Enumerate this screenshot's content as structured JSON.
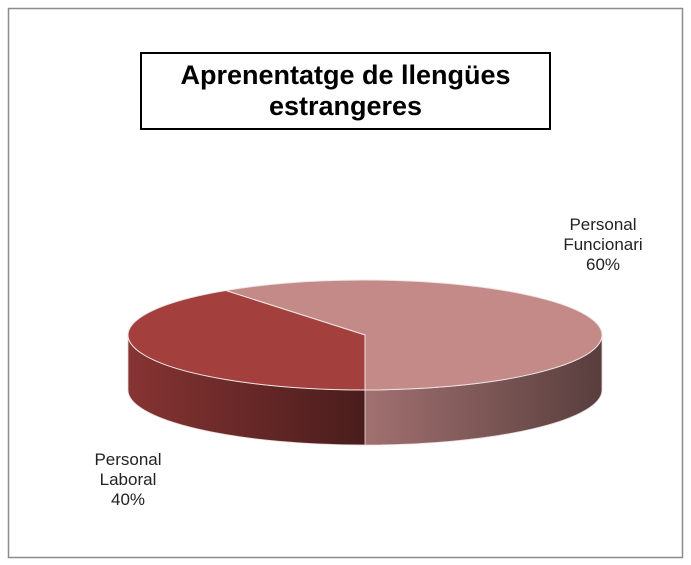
{
  "chart_data": {
    "type": "pie3d",
    "title": "Aprenentatge de llengües estrangeres",
    "categories": [
      "Personal Funcionari",
      "Personal Laboral"
    ],
    "values": [
      60,
      40
    ],
    "value_labels": [
      "60%",
      "40%"
    ],
    "colors": [
      "#c48a88",
      "#a3403e"
    ]
  }
}
